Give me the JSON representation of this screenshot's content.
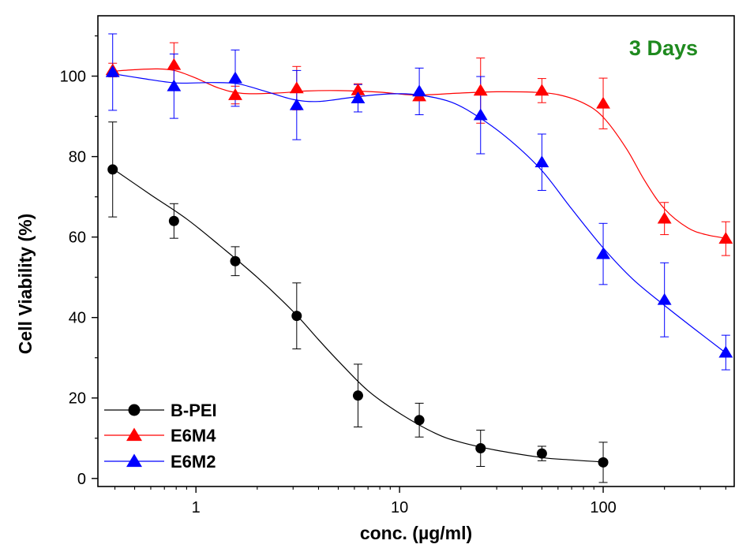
{
  "chart_data": {
    "type": "scatter",
    "title": "",
    "xlabel": "conc. (µg/ml)",
    "ylabel": "Cell Viability (%)",
    "annotation": "3 Days",
    "x_scale": "log",
    "xlim": [
      0.33,
      440
    ],
    "ylim": [
      -2,
      115
    ],
    "x_ticks": [
      1,
      10,
      100
    ],
    "x_tick_labels": [
      "1",
      "10",
      "100"
    ],
    "y_ticks": [
      0,
      20,
      40,
      60,
      80,
      100
    ],
    "y_tick_labels": [
      "0",
      "20",
      "40",
      "60",
      "80",
      "100"
    ],
    "grid": false,
    "legend_position": "bottom-left",
    "series": [
      {
        "name": "B-PEI",
        "color": "#000000",
        "marker": "circle",
        "x": [
          0.39,
          0.78,
          1.56,
          3.125,
          6.25,
          12.5,
          25,
          50,
          100
        ],
        "y": [
          76.8,
          64,
          54,
          40.4,
          20.6,
          14.5,
          7.5,
          6.2,
          4
        ],
        "err": [
          11.8,
          4.3,
          3.6,
          8.2,
          7.8,
          4.2,
          4.5,
          1.8,
          5
        ],
        "curve_x": [
          0.39,
          0.6,
          0.9,
          1.3,
          2,
          3,
          4,
          5,
          7,
          10,
          15,
          20,
          30,
          50,
          70,
          100
        ],
        "curve_y": [
          77,
          70.5,
          64.5,
          58,
          50,
          41.5,
          34.5,
          29.2,
          21.8,
          16.2,
          11.2,
          9,
          7,
          5.2,
          4.6,
          4.1
        ]
      },
      {
        "name": "E6M4",
        "color": "#ff0000",
        "marker": "triangle",
        "x": [
          0.39,
          0.78,
          1.56,
          3.125,
          6.25,
          12.5,
          25,
          50,
          100,
          200,
          400
        ],
        "y": [
          101.5,
          102.8,
          95.3,
          97,
          96.5,
          95,
          96.4,
          96.4,
          93.2,
          64.6,
          59.6
        ],
        "err": [
          1.7,
          5.5,
          2.2,
          5.4,
          1.6,
          1.1,
          8.1,
          3,
          6.3,
          4,
          4.2
        ],
        "curve_x": [
          0.39,
          0.5,
          0.65,
          0.8,
          1,
          1.3,
          1.7,
          2.5,
          3.5,
          5,
          8,
          12,
          20,
          30,
          45,
          60,
          80,
          100,
          130,
          160,
          200,
          260,
          320,
          400
        ],
        "curve_y": [
          101.2,
          101.6,
          101.8,
          101.3,
          99.5,
          97,
          95.7,
          95.8,
          96.3,
          96.4,
          96,
          95.3,
          95.8,
          96.1,
          96,
          95.4,
          93.3,
          89.8,
          82,
          74,
          67,
          62.3,
          60.6,
          59.7
        ]
      },
      {
        "name": "E6M2",
        "color": "#0000ff",
        "marker": "triangle",
        "x": [
          0.39,
          0.78,
          1.56,
          3.125,
          6.25,
          12.5,
          25,
          50,
          100,
          200,
          400
        ],
        "y": [
          101,
          97.5,
          99.5,
          92.8,
          94.5,
          96.2,
          90.3,
          78.6,
          55.8,
          44.4,
          31.3
        ],
        "err": [
          9.5,
          8,
          7,
          8.6,
          3.4,
          5.8,
          9.6,
          7,
          7.6,
          9.2,
          4.3
        ],
        "curve_x": [
          0.39,
          0.55,
          0.8,
          1.2,
          1.6,
          2.2,
          3,
          4,
          6,
          9,
          12.5,
          18,
          25,
          35,
          50,
          70,
          100,
          140,
          200,
          280,
          400
        ],
        "curve_y": [
          100.6,
          99.4,
          98.3,
          98.4,
          98.1,
          96.2,
          94.2,
          93.7,
          94.8,
          95.6,
          95.3,
          93.5,
          89.5,
          84,
          76.5,
          67,
          57.3,
          49.5,
          43,
          37.2,
          31.2
        ]
      }
    ]
  }
}
